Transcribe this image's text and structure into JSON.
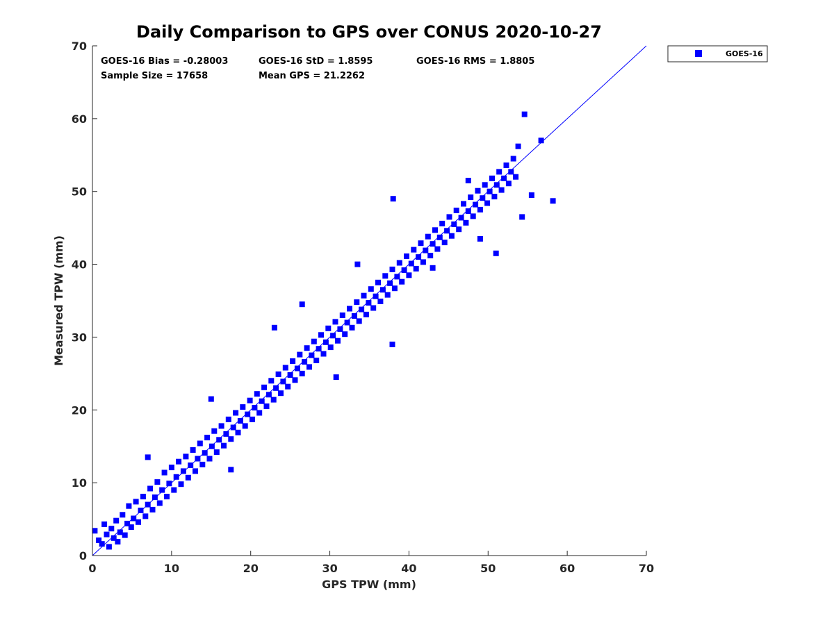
{
  "chart_data": {
    "type": "scatter",
    "title": "Daily Comparison to GPS over CONUS 2020-10-27",
    "xlabel": "GPS TPW (mm)",
    "ylabel": "Measured TPW (mm)",
    "xlim": [
      0,
      70
    ],
    "ylim": [
      0,
      70
    ],
    "xticks": [
      "0",
      "10",
      "20",
      "30",
      "40",
      "50",
      "60",
      "70"
    ],
    "yticks": [
      "0",
      "10",
      "20",
      "30",
      "40",
      "50",
      "60",
      "70"
    ],
    "grid": false,
    "legend": {
      "placement": "outside-top-right",
      "entries": [
        "GOES-16"
      ]
    },
    "stats": {
      "bias": "GOES-16 Bias = -0.28003",
      "std": "GOES-16 StD = 1.8595",
      "rms": "GOES-16 RMS = 1.8805",
      "sample_size": "Sample Size = 17658",
      "mean_gps": "Mean GPS = 21.2262"
    },
    "reference_line": {
      "from": [
        0,
        0
      ],
      "to": [
        70,
        70
      ]
    },
    "series": [
      {
        "name": "GOES-16",
        "color": "#0000ff",
        "marker": "square",
        "points": [
          [
            0.3,
            3.4
          ],
          [
            0.8,
            2.1
          ],
          [
            1.2,
            1.6
          ],
          [
            1.5,
            4.3
          ],
          [
            1.8,
            2.9
          ],
          [
            2.1,
            1.2
          ],
          [
            2.4,
            3.7
          ],
          [
            2.7,
            2.4
          ],
          [
            3.0,
            4.8
          ],
          [
            3.2,
            1.9
          ],
          [
            3.5,
            3.2
          ],
          [
            3.8,
            5.6
          ],
          [
            4.1,
            2.8
          ],
          [
            4.4,
            4.4
          ],
          [
            4.6,
            6.8
          ],
          [
            4.9,
            3.9
          ],
          [
            5.2,
            5.1
          ],
          [
            5.5,
            7.4
          ],
          [
            5.8,
            4.6
          ],
          [
            6.1,
            6.2
          ],
          [
            6.4,
            8.1
          ],
          [
            6.7,
            5.4
          ],
          [
            7.0,
            7.0
          ],
          [
            7.3,
            9.2
          ],
          [
            7.6,
            6.3
          ],
          [
            7.9,
            8.0
          ],
          [
            8.2,
            10.1
          ],
          [
            8.5,
            7.2
          ],
          [
            8.8,
            9.0
          ],
          [
            9.1,
            11.4
          ],
          [
            9.4,
            8.1
          ],
          [
            9.7,
            9.9
          ],
          [
            10.0,
            12.1
          ],
          [
            10.3,
            9.0
          ],
          [
            10.6,
            10.8
          ],
          [
            10.9,
            12.9
          ],
          [
            11.2,
            9.8
          ],
          [
            11.5,
            11.6
          ],
          [
            11.8,
            13.6
          ],
          [
            12.1,
            10.7
          ],
          [
            12.4,
            12.4
          ],
          [
            12.7,
            14.5
          ],
          [
            13.0,
            11.6
          ],
          [
            13.3,
            13.3
          ],
          [
            13.6,
            15.4
          ],
          [
            13.9,
            12.5
          ],
          [
            14.2,
            14.1
          ],
          [
            14.5,
            16.2
          ],
          [
            14.8,
            13.3
          ],
          [
            15.1,
            15.0
          ],
          [
            15.4,
            17.1
          ],
          [
            15.7,
            14.2
          ],
          [
            16.0,
            15.9
          ],
          [
            16.3,
            17.8
          ],
          [
            16.6,
            15.1
          ],
          [
            16.9,
            16.7
          ],
          [
            17.2,
            18.7
          ],
          [
            17.5,
            16.0
          ],
          [
            17.8,
            17.6
          ],
          [
            18.1,
            19.6
          ],
          [
            18.4,
            16.9
          ],
          [
            18.7,
            18.5
          ],
          [
            19.0,
            20.4
          ],
          [
            19.3,
            17.8
          ],
          [
            19.6,
            19.4
          ],
          [
            19.9,
            21.3
          ],
          [
            20.2,
            18.7
          ],
          [
            20.5,
            20.3
          ],
          [
            20.8,
            22.2
          ],
          [
            21.1,
            19.6
          ],
          [
            21.4,
            21.2
          ],
          [
            21.7,
            23.1
          ],
          [
            22.0,
            20.5
          ],
          [
            22.3,
            22.1
          ],
          [
            22.6,
            24.0
          ],
          [
            22.9,
            21.4
          ],
          [
            23.2,
            23.0
          ],
          [
            23.5,
            24.9
          ],
          [
            23.8,
            22.3
          ],
          [
            24.1,
            23.9
          ],
          [
            24.4,
            25.8
          ],
          [
            24.7,
            23.2
          ],
          [
            25.0,
            24.8
          ],
          [
            25.3,
            26.7
          ],
          [
            25.6,
            24.1
          ],
          [
            25.9,
            25.7
          ],
          [
            26.2,
            27.6
          ],
          [
            26.5,
            25.0
          ],
          [
            26.8,
            26.6
          ],
          [
            27.1,
            28.5
          ],
          [
            27.4,
            25.9
          ],
          [
            27.7,
            27.5
          ],
          [
            28.0,
            29.4
          ],
          [
            28.3,
            26.8
          ],
          [
            28.6,
            28.4
          ],
          [
            28.9,
            30.3
          ],
          [
            29.2,
            27.7
          ],
          [
            29.5,
            29.3
          ],
          [
            29.8,
            31.2
          ],
          [
            30.1,
            28.6
          ],
          [
            30.4,
            30.2
          ],
          [
            30.7,
            32.1
          ],
          [
            31.0,
            29.5
          ],
          [
            31.3,
            31.1
          ],
          [
            31.6,
            33.0
          ],
          [
            31.9,
            30.4
          ],
          [
            32.2,
            32.0
          ],
          [
            32.5,
            33.9
          ],
          [
            32.8,
            31.3
          ],
          [
            33.1,
            32.9
          ],
          [
            33.4,
            34.8
          ],
          [
            33.7,
            32.2
          ],
          [
            34.0,
            33.8
          ],
          [
            34.3,
            35.7
          ],
          [
            34.6,
            33.1
          ],
          [
            34.9,
            34.7
          ],
          [
            35.2,
            36.6
          ],
          [
            35.5,
            34.0
          ],
          [
            35.8,
            35.6
          ],
          [
            36.1,
            37.5
          ],
          [
            36.4,
            34.9
          ],
          [
            36.7,
            36.5
          ],
          [
            37.0,
            38.4
          ],
          [
            37.3,
            35.8
          ],
          [
            37.6,
            37.4
          ],
          [
            37.9,
            39.3
          ],
          [
            38.2,
            36.7
          ],
          [
            38.5,
            38.3
          ],
          [
            38.8,
            40.2
          ],
          [
            39.1,
            37.6
          ],
          [
            39.4,
            39.2
          ],
          [
            39.7,
            41.1
          ],
          [
            40.0,
            38.5
          ],
          [
            40.3,
            40.1
          ],
          [
            40.6,
            42.0
          ],
          [
            40.9,
            39.4
          ],
          [
            41.2,
            41.0
          ],
          [
            41.5,
            42.9
          ],
          [
            41.8,
            40.3
          ],
          [
            42.1,
            41.9
          ],
          [
            42.4,
            43.8
          ],
          [
            42.7,
            41.2
          ],
          [
            43.0,
            42.8
          ],
          [
            43.3,
            44.7
          ],
          [
            43.6,
            42.1
          ],
          [
            43.9,
            43.7
          ],
          [
            44.2,
            45.6
          ],
          [
            44.5,
            43.0
          ],
          [
            44.8,
            44.6
          ],
          [
            45.1,
            46.5
          ],
          [
            45.4,
            43.9
          ],
          [
            45.7,
            45.5
          ],
          [
            46.0,
            47.4
          ],
          [
            46.3,
            44.8
          ],
          [
            46.6,
            46.4
          ],
          [
            46.9,
            48.3
          ],
          [
            47.2,
            45.7
          ],
          [
            47.5,
            47.3
          ],
          [
            47.8,
            49.2
          ],
          [
            48.1,
            46.6
          ],
          [
            48.4,
            48.2
          ],
          [
            48.7,
            50.1
          ],
          [
            49.0,
            47.5
          ],
          [
            49.3,
            49.1
          ],
          [
            49.6,
            50.9
          ],
          [
            49.9,
            48.4
          ],
          [
            50.2,
            50.0
          ],
          [
            50.5,
            51.8
          ],
          [
            50.8,
            49.3
          ],
          [
            51.1,
            50.9
          ],
          [
            51.4,
            52.7
          ],
          [
            51.7,
            50.2
          ],
          [
            52.0,
            51.8
          ],
          [
            52.3,
            53.6
          ],
          [
            52.6,
            51.1
          ],
          [
            52.9,
            52.7
          ],
          [
            53.2,
            54.5
          ],
          [
            53.5,
            52.0
          ],
          [
            53.8,
            56.2
          ],
          [
            54.6,
            60.6
          ],
          [
            56.7,
            57.0
          ],
          [
            58.2,
            48.7
          ],
          [
            55.5,
            49.5
          ],
          [
            54.3,
            46.5
          ],
          [
            51.0,
            41.5
          ],
          [
            15.0,
            21.5
          ],
          [
            23.0,
            31.3
          ],
          [
            26.5,
            34.5
          ],
          [
            33.5,
            40.0
          ],
          [
            38.0,
            49.0
          ],
          [
            47.5,
            51.5
          ],
          [
            7.0,
            13.5
          ],
          [
            17.5,
            11.8
          ],
          [
            30.8,
            24.5
          ],
          [
            37.9,
            29.0
          ],
          [
            43.0,
            39.5
          ],
          [
            49.0,
            43.5
          ]
        ]
      }
    ]
  }
}
